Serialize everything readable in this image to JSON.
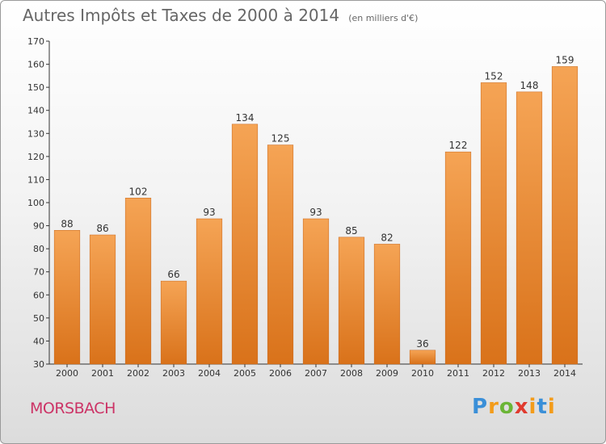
{
  "title": "Autres Impôts et Taxes de 2000 à 2014",
  "unit": "(en milliers d'€)",
  "commune": "MORSBACH",
  "logo": {
    "text": "Proxiti",
    "parts": [
      "P",
      "r",
      "o",
      "x",
      "i",
      "t",
      "i"
    ]
  },
  "colors": {
    "bar_light": "#f5a455",
    "bar_dark": "#d9721a",
    "title": "#666666",
    "commune": "#cc3366"
  },
  "chart_data": {
    "type": "bar",
    "title": "Autres Impôts et Taxes de 2000 à 2014",
    "subtitle": "(en milliers d'€)",
    "categories": [
      "2000",
      "2001",
      "2002",
      "2003",
      "2004",
      "2005",
      "2006",
      "2007",
      "2008",
      "2009",
      "2010",
      "2011",
      "2012",
      "2013",
      "2014"
    ],
    "values": [
      88,
      86,
      102,
      66,
      93,
      134,
      125,
      93,
      85,
      82,
      36,
      122,
      152,
      148,
      159
    ],
    "ylim": [
      30,
      170
    ],
    "yticks": [
      30,
      40,
      50,
      60,
      70,
      80,
      90,
      100,
      110,
      120,
      130,
      140,
      150,
      160,
      170
    ],
    "grid": false,
    "data_labels": true
  }
}
